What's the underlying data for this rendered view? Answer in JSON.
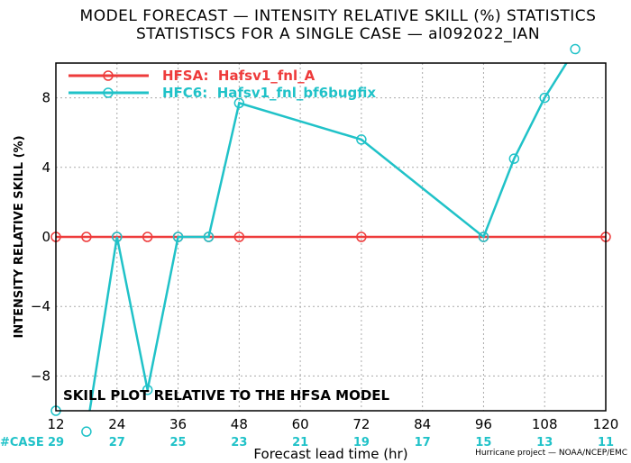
{
  "chart_data": {
    "type": "line",
    "title": "MODEL FORECAST — INTENSITY RELATIVE SKILL (%) STATISTICS",
    "subtitle": "STATISTISCS FOR A SINGLE CASE — al092022_IAN",
    "xlabel": "Forecast lead time (hr)",
    "ylabel": "INTENSITY RELATIVE SKILL (%)",
    "xlim": [
      12,
      120
    ],
    "ylim": [
      -10,
      10
    ],
    "x_ticks": [
      "12",
      "24",
      "36",
      "48",
      "60",
      "72",
      "84",
      "96",
      "108",
      "120"
    ],
    "y_ticks": [
      "−8",
      "−4",
      "0",
      "4",
      "8"
    ],
    "y_tick_values": [
      -8,
      -4,
      0,
      4,
      8
    ],
    "grid": true,
    "legend_position": "top-left",
    "series": [
      {
        "name": "HFSA:  Hafsv1_fnl_A",
        "color": "#ee3b3b",
        "x": [
          12,
          18,
          24,
          30,
          36,
          42,
          48,
          72,
          96,
          120
        ],
        "y": [
          0,
          0,
          0,
          0,
          0,
          0,
          0,
          0,
          0,
          0
        ]
      },
      {
        "name": "HFC6:  Hafsv1_fnl_bf6bugfix",
        "color": "#20c2c8",
        "x": [
          12,
          18,
          24,
          30,
          36,
          42,
          48,
          72,
          96,
          102,
          108,
          114
        ],
        "y": [
          -10,
          -11.2,
          0,
          -8.8,
          0,
          0,
          7.7,
          5.6,
          0,
          4.5,
          8.0,
          10.8
        ]
      }
    ],
    "case_label": "#CASE",
    "case_counts": [
      "29",
      "27",
      "25",
      "23",
      "21",
      "19",
      "17",
      "15",
      "13",
      "11"
    ],
    "annotation": "SKILL PLOT RELATIVE TO THE HFSA MODEL",
    "credit": "Hurricane project — NOAA/NCEP/EMC"
  }
}
